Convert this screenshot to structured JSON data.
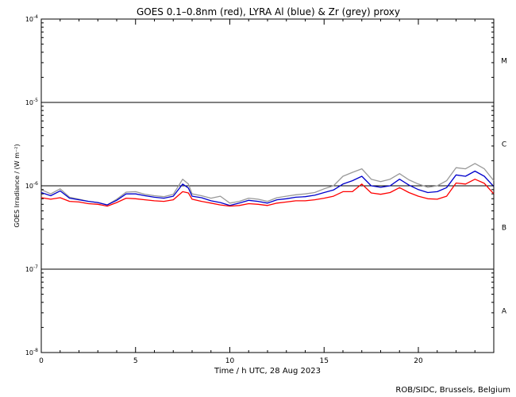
{
  "chart_data": {
    "type": "line",
    "title": "GOES 0.1–0.8nm (red), LYRA Al (blue) & Zr (grey) proxy",
    "xlabel": "Time / h UTC, 28 Aug 2023",
    "ylabel": "GOES Irradiance / (W m⁻²)",
    "xlim": [
      0,
      24
    ],
    "ylim": [
      1e-08,
      0.0001
    ],
    "yscale": "log",
    "x_ticks": [
      0,
      5,
      10,
      15,
      20
    ],
    "y_ticks": [
      {
        "mantissa": "10",
        "exp": "-8"
      },
      {
        "mantissa": "10",
        "exp": "-7"
      },
      {
        "mantissa": "10",
        "exp": "-6"
      },
      {
        "mantissa": "10",
        "exp": "-5"
      },
      {
        "mantissa": "10",
        "exp": "-4"
      }
    ],
    "flare_class_lines": [
      1e-07,
      1e-06,
      1e-05
    ],
    "flare_classes": [
      {
        "label": "A",
        "y": 3.16e-08
      },
      {
        "label": "B",
        "y": 3.16e-07
      },
      {
        "label": "C",
        "y": 3.16e-06
      },
      {
        "label": "M",
        "y": 3.16e-05
      }
    ],
    "credit": "ROB/SIDC, Brussels, Belgium",
    "series": [
      {
        "color": "#ff0000",
        "x": [
          0,
          0.5,
          1,
          1.5,
          2,
          2.5,
          3,
          3.5,
          4,
          4.5,
          5,
          5.5,
          6,
          6.5,
          7,
          7.5,
          7.8,
          8,
          8.5,
          9,
          9.5,
          10,
          10.5,
          11,
          11.5,
          12,
          12.5,
          13,
          13.5,
          14,
          14.5,
          15,
          15.5,
          16,
          16.5,
          17,
          17.5,
          18,
          18.5,
          19,
          19.5,
          20,
          20.5,
          21,
          21.5,
          22,
          22.5,
          23,
          23.5,
          24
        ],
        "y": [
          7.2e-07,
          6.9e-07,
          7.2e-07,
          6.5e-07,
          6.4e-07,
          6.1e-07,
          6e-07,
          5.7e-07,
          6.3e-07,
          7.1e-07,
          7e-07,
          6.8e-07,
          6.6e-07,
          6.5e-07,
          6.8e-07,
          8.5e-07,
          8.2e-07,
          6.9e-07,
          6.5e-07,
          6.2e-07,
          5.9e-07,
          5.7e-07,
          5.8e-07,
          6.1e-07,
          6e-07,
          5.8e-07,
          6.2e-07,
          6.4e-07,
          6.6e-07,
          6.6e-07,
          6.8e-07,
          7.1e-07,
          7.5e-07,
          8.5e-07,
          8.5e-07,
          1.05e-06,
          8.2e-07,
          7.9e-07,
          8.3e-07,
          9.5e-07,
          8.3e-07,
          7.5e-07,
          7e-07,
          6.9e-07,
          7.5e-07,
          1.08e-06,
          1.05e-06,
          1.2e-06,
          1.07e-06,
          8e-07
        ]
      },
      {
        "color": "#0000cc",
        "x": [
          0,
          0.5,
          1,
          1.5,
          2,
          2.5,
          3,
          3.5,
          4,
          4.5,
          5,
          5.5,
          6,
          6.5,
          7,
          7.5,
          7.8,
          8,
          8.5,
          9,
          9.5,
          10,
          10.5,
          11,
          11.5,
          12,
          12.5,
          13,
          13.5,
          14,
          14.5,
          15,
          15.5,
          16,
          16.5,
          17,
          17.5,
          18,
          18.5,
          19,
          19.5,
          20,
          20.5,
          21,
          21.5,
          22,
          22.5,
          23,
          23.5,
          24
        ],
        "y": [
          8.3e-07,
          7.6e-07,
          8.7e-07,
          7.1e-07,
          6.8e-07,
          6.5e-07,
          6.3e-07,
          5.9e-07,
          6.7e-07,
          8e-07,
          8e-07,
          7.6e-07,
          7.3e-07,
          7.1e-07,
          7.5e-07,
          1.05e-06,
          9.4e-07,
          7.5e-07,
          7.2e-07,
          6.6e-07,
          6.3e-07,
          5.8e-07,
          6.2e-07,
          6.7e-07,
          6.5e-07,
          6.2e-07,
          6.8e-07,
          7e-07,
          7.3e-07,
          7.4e-07,
          7.7e-07,
          8.3e-07,
          8.9e-07,
          1.05e-06,
          1.15e-06,
          1.3e-06,
          1e-06,
          9.6e-07,
          1e-06,
          1.2e-06,
          1.02e-06,
          9e-07,
          8.3e-07,
          8.5e-07,
          9.5e-07,
          1.35e-06,
          1.3e-06,
          1.5e-06,
          1.3e-06,
          9.8e-07
        ]
      },
      {
        "color": "#999999",
        "x": [
          0,
          0.5,
          1,
          1.5,
          2,
          2.5,
          3,
          3.5,
          4,
          4.5,
          5,
          5.5,
          6,
          6.5,
          7,
          7.5,
          7.8,
          8,
          8.5,
          9,
          9.5,
          10,
          10.5,
          11,
          11.5,
          12,
          12.5,
          13,
          13.5,
          14,
          14.5,
          15,
          15.5,
          16,
          16.5,
          17,
          17.5,
          18,
          18.5,
          19,
          19.5,
          20,
          20.5,
          21,
          21.5,
          22,
          22.5,
          23,
          23.5,
          24
        ],
        "y": [
          9e-07,
          8e-07,
          9.2e-07,
          7.3e-07,
          6.9e-07,
          6.5e-07,
          6.3e-07,
          5.9e-07,
          6.9e-07,
          8.4e-07,
          8.5e-07,
          7.9e-07,
          7.6e-07,
          7.4e-07,
          7.9e-07,
          1.2e-06,
          1.05e-06,
          8e-07,
          7.6e-07,
          7.1e-07,
          7.5e-07,
          6.2e-07,
          6.5e-07,
          7.1e-07,
          6.9e-07,
          6.5e-07,
          7.2e-07,
          7.5e-07,
          7.8e-07,
          8e-07,
          8.3e-07,
          9.2e-07,
          1e-06,
          1.3e-06,
          1.45e-06,
          1.6e-06,
          1.2e-06,
          1.12e-06,
          1.2e-06,
          1.4e-06,
          1.18e-06,
          1.05e-06,
          9.6e-07,
          1e-06,
          1.15e-06,
          1.65e-06,
          1.6e-06,
          1.85e-06,
          1.6e-06,
          1.15e-06
        ]
      }
    ]
  }
}
